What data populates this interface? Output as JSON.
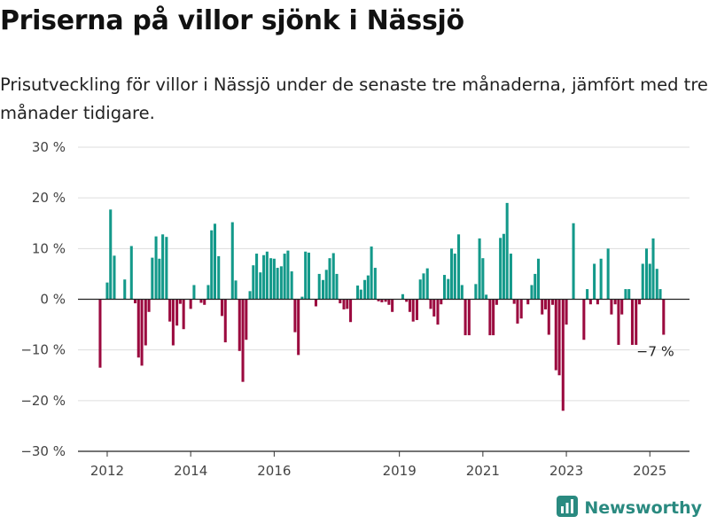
{
  "header": {
    "title": "Priserna på villor sjönk i Nässjö",
    "subtitle": "Prisutveckling för villor i Nässjö under de senaste tre månaderna, jämfört med tre månader tidigare."
  },
  "brand": {
    "name": "Newsworthy",
    "icon": "newsworthy-logo-icon"
  },
  "colors": {
    "positive": "#13998a",
    "negative": "#9b0a3f",
    "grid": "#dddddd",
    "zero_line": "#222222",
    "brand": "#2a8a80"
  },
  "chart_data": {
    "type": "bar",
    "title": "Priserna på villor sjönk i Nässjö",
    "subtitle": "Prisutveckling för villor i Nässjö under de senaste tre månaderna, jämfört med tre månader tidigare.",
    "xlabel": "",
    "ylabel": "",
    "ylim": [
      -30,
      30
    ],
    "xlim": [
      2011.3,
      2025.95
    ],
    "grid": true,
    "unit": "%",
    "yticks": [
      {
        "value": 30,
        "label": "30 %"
      },
      {
        "value": 20,
        "label": "20 %"
      },
      {
        "value": 10,
        "label": "10 %"
      },
      {
        "value": 0,
        "label": "0 %"
      },
      {
        "value": -10,
        "label": "−10 %"
      },
      {
        "value": -20,
        "label": "−20 %"
      },
      {
        "value": -30,
        "label": "−30 %"
      }
    ],
    "xticks": [
      {
        "value": 2012,
        "label": "2012"
      },
      {
        "value": 2014,
        "label": "2014"
      },
      {
        "value": 2016,
        "label": "2016"
      },
      {
        "value": 2019,
        "label": "2019"
      },
      {
        "value": 2021,
        "label": "2021"
      },
      {
        "value": 2023,
        "label": "2023"
      },
      {
        "value": 2025,
        "label": "2025"
      }
    ],
    "annotation": {
      "label": "−7 %",
      "x": 2025.33,
      "y": -7
    },
    "x": [
      2011.83,
      2011.92,
      2012.0,
      2012.08,
      2012.17,
      2012.25,
      2012.33,
      2012.42,
      2012.5,
      2012.58,
      2012.67,
      2012.75,
      2012.83,
      2012.92,
      2013.0,
      2013.08,
      2013.17,
      2013.25,
      2013.33,
      2013.42,
      2013.5,
      2013.58,
      2013.67,
      2013.75,
      2013.83,
      2013.92,
      2014.0,
      2014.08,
      2014.17,
      2014.25,
      2014.33,
      2014.42,
      2014.5,
      2014.58,
      2014.67,
      2014.75,
      2014.83,
      2014.92,
      2015.0,
      2015.08,
      2015.17,
      2015.25,
      2015.33,
      2015.42,
      2015.5,
      2015.58,
      2015.67,
      2015.75,
      2015.83,
      2015.92,
      2016.0,
      2016.08,
      2016.17,
      2016.25,
      2016.33,
      2016.42,
      2016.5,
      2016.58,
      2016.67,
      2016.75,
      2016.83,
      2016.92,
      2017.0,
      2017.08,
      2017.17,
      2017.25,
      2017.33,
      2017.42,
      2017.5,
      2017.58,
      2017.67,
      2017.75,
      2017.83,
      2017.92,
      2018.0,
      2018.08,
      2018.17,
      2018.25,
      2018.33,
      2018.42,
      2018.5,
      2018.58,
      2018.67,
      2018.75,
      2018.83,
      2018.92,
      2019.0,
      2019.08,
      2019.17,
      2019.25,
      2019.33,
      2019.42,
      2019.5,
      2019.58,
      2019.67,
      2019.75,
      2019.83,
      2019.92,
      2020.0,
      2020.08,
      2020.17,
      2020.25,
      2020.33,
      2020.42,
      2020.5,
      2020.58,
      2020.67,
      2020.75,
      2020.83,
      2020.92,
      2021.0,
      2021.08,
      2021.17,
      2021.25,
      2021.33,
      2021.42,
      2021.5,
      2021.58,
      2021.67,
      2021.75,
      2021.83,
      2021.92,
      2022.0,
      2022.08,
      2022.17,
      2022.25,
      2022.33,
      2022.42,
      2022.5,
      2022.58,
      2022.67,
      2022.75,
      2022.83,
      2022.92,
      2023.0,
      2023.08,
      2023.17,
      2023.25,
      2023.33,
      2023.42,
      2023.5,
      2023.58,
      2023.67,
      2023.75,
      2023.83,
      2023.92,
      2024.0,
      2024.08,
      2024.17,
      2024.25,
      2024.33,
      2024.42,
      2024.5,
      2024.58,
      2024.67,
      2024.75,
      2024.83,
      2024.92,
      2025.0,
      2025.08,
      2025.17,
      2025.25,
      2025.33
    ],
    "values": [
      -13.5,
      null,
      3.3,
      17.7,
      8.6,
      null,
      null,
      3.9,
      null,
      10.5,
      -0.8,
      -11.5,
      -13.1,
      -9.1,
      -2.5,
      8.2,
      12.4,
      8.0,
      12.8,
      12.3,
      -4.4,
      -9.1,
      -5.2,
      -0.9,
      -5.9,
      null,
      -1.9,
      2.8,
      null,
      -0.7,
      -1.1,
      2.8,
      13.6,
      14.9,
      8.5,
      -3.3,
      -8.5,
      null,
      15.2,
      3.7,
      -10.2,
      -16.3,
      -8.0,
      1.6,
      6.7,
      9.0,
      5.3,
      8.7,
      9.4,
      8.1,
      8.0,
      6.2,
      6.5,
      9.0,
      9.6,
      5.5,
      -6.5,
      -11.0,
      0.5,
      9.4,
      9.2,
      null,
      -1.4,
      5.0,
      3.8,
      5.8,
      8.1,
      9.1,
      5.0,
      -0.8,
      -2.0,
      -1.9,
      -4.5,
      null,
      2.7,
      1.9,
      3.8,
      4.7,
      10.4,
      6.2,
      -0.4,
      -0.6,
      -0.5,
      -1.1,
      -2.5,
      null,
      null,
      1.0,
      -0.5,
      -2.5,
      -4.4,
      -4.1,
      3.9,
      5.1,
      6.1,
      -1.9,
      -3.4,
      -5.0,
      -1.0,
      4.8,
      4.0,
      10.0,
      9.0,
      12.8,
      2.8,
      -7.1,
      -7.1,
      null,
      3.0,
      12.0,
      8.1,
      0.9,
      -7.1,
      -7.1,
      -1.1,
      12.1,
      12.9,
      19.0,
      9.0,
      -0.9,
      -4.8,
      -3.8,
      null,
      -1.0,
      2.8,
      5.0,
      8.0,
      -3.0,
      -2.0,
      -7.0,
      -1.1,
      -14.0,
      -15.0,
      -22.0,
      -5.0,
      null,
      15.0,
      null,
      null,
      -8.0,
      2.0,
      -1.0,
      7.0,
      -1.0,
      8.0,
      null,
      10.0,
      -3.0,
      -1.0,
      -9.0,
      -3.0,
      2.0,
      2.0,
      -9.0,
      -9.0,
      -1.0,
      7.0,
      10.0,
      7.0,
      12.0,
      6.0,
      2.0,
      -7.0
    ]
  }
}
